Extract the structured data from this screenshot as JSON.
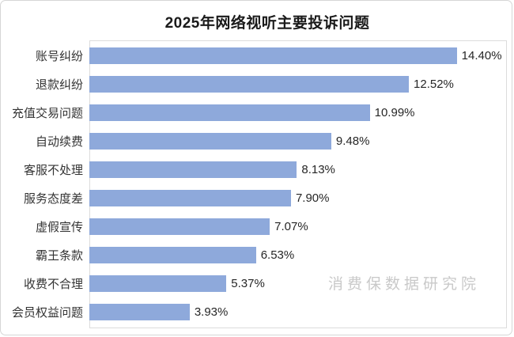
{
  "title": "2025年网络视听主要投诉问题",
  "watermark": "消费保数据研究院",
  "colors": {
    "bar": "#8EA9DB",
    "plot_border": "#DCDCDC",
    "category_text": "#333333",
    "value_text": "#262626",
    "title_text": "#1A1A1A",
    "watermark_text": "#C9C9C9"
  },
  "chart_data": {
    "type": "bar",
    "orientation": "horizontal",
    "title": "2025年网络视听主要投诉问题",
    "categories": [
      "账号纠纷",
      "退款纠纷",
      "充值交易问题",
      "自动续费",
      "客服不处理",
      "服务态度差",
      "虚假宣传",
      "霸王条款",
      "收费不合理",
      "会员权益问题"
    ],
    "values": [
      14.4,
      12.52,
      10.99,
      9.48,
      8.13,
      7.9,
      7.07,
      6.53,
      5.37,
      3.93
    ],
    "value_labels": [
      "14.40%",
      "12.52%",
      "10.99%",
      "9.48%",
      "8.13%",
      "7.90%",
      "7.07%",
      "6.53%",
      "5.37%",
      "3.93%"
    ],
    "xlabel": "",
    "ylabel": "",
    "xlim": [
      0,
      16.3
    ],
    "grid": false,
    "legend": false,
    "data_labels": true
  }
}
